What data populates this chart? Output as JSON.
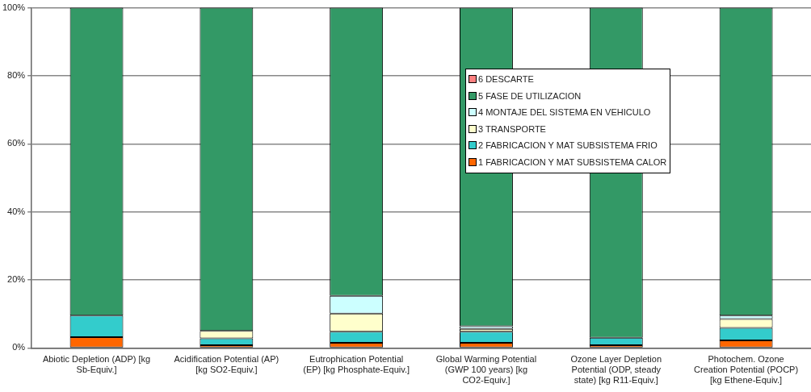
{
  "chart_data": {
    "type": "bar",
    "stacked": true,
    "categories": [
      "Abiotic Depletion (ADP) [kg Sb-Equiv.]",
      "Acidification Potential (AP) [kg SO2-Equiv.]",
      "Eutrophication Potential (EP) [kg Phosphate-Equiv.]",
      "Global Warming Potential (GWP 100 years) [kg CO2-Equiv.]",
      "Ozone Layer Depletion Potential (ODP, steady state) [kg R11-Equiv.]",
      "Photochem. Ozone Creation Potential (POCP) [kg Ethene-Equiv.]"
    ],
    "series": [
      {
        "name": "1 FABRICACION Y MAT SUBSISTEMA CALOR",
        "color": "#ff6600",
        "values": [
          3.2,
          0.8,
          1.5,
          1.5,
          0.8,
          2.2
        ]
      },
      {
        "name": "2 FABRICACION Y MAT SUBSISTEMA FRIO",
        "color": "#33cccc",
        "values": [
          6.3,
          2,
          3.3,
          3.3,
          2.2,
          3.7
        ]
      },
      {
        "name": "3 TRANSPORTE",
        "color": "#ffffcc",
        "values": [
          null,
          2.2,
          5.3,
          0.8,
          0,
          2.6
        ]
      },
      {
        "name": "4 MONTAJE DEL SISTEMA EN VEHICULO",
        "color": "#ccffff",
        "values": [
          null,
          null,
          5.2,
          0.8,
          0,
          1
        ]
      },
      {
        "name": "5 FASE DE UTILIZACION",
        "color": "#339966",
        "values": [
          90.5,
          95,
          84.7,
          93.6,
          97,
          90.5
        ]
      },
      {
        "name": "6 DESCARTE",
        "color": "#ff8080",
        "values": [
          0,
          0,
          0,
          0,
          0,
          0
        ]
      }
    ],
    "ylim": [
      0,
      100
    ],
    "yticks": [
      {
        "value": 0,
        "label": "0%"
      },
      {
        "value": 20,
        "label": "20%"
      },
      {
        "value": 40,
        "label": "40%"
      },
      {
        "value": 60,
        "label": "60%"
      },
      {
        "value": 80,
        "label": "80%"
      },
      {
        "value": 100,
        "label": "100%"
      }
    ],
    "grid": "y",
    "legend": "right"
  }
}
